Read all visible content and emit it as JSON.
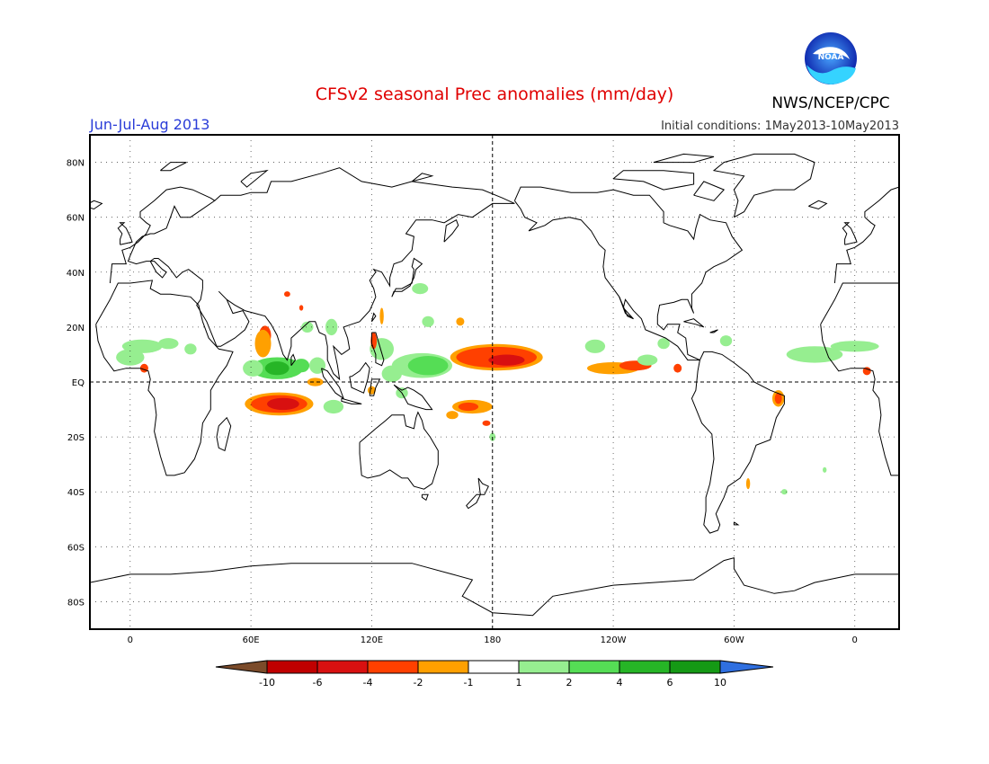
{
  "header": {
    "title": "CFSv2 seasonal Prec anomalies (mm/day)",
    "agency": "NWS/NCEP/CPC",
    "logo_text": "NOAA",
    "season": "Jun-Jul-Aug 2013",
    "initial_conditions": "Initial conditions: 1May2013-10May2013"
  },
  "colors": {
    "title": "#e00000",
    "season": "#2a3cd8",
    "frame": "#000000",
    "grid": "#000000",
    "coast": "#000000"
  },
  "map": {
    "lat_ticks": [
      {
        "lat": 80,
        "label": "80N"
      },
      {
        "lat": 60,
        "label": "60N"
      },
      {
        "lat": 40,
        "label": "40N"
      },
      {
        "lat": 20,
        "label": "20N"
      },
      {
        "lat": 0,
        "label": "EQ"
      },
      {
        "lat": -20,
        "label": "20S"
      },
      {
        "lat": -40,
        "label": "40S"
      },
      {
        "lat": -60,
        "label": "60S"
      },
      {
        "lat": -80,
        "label": "80S"
      }
    ],
    "lon_ticks": [
      {
        "lon": 0,
        "label": "0"
      },
      {
        "lon": 60,
        "label": "60E"
      },
      {
        "lon": 120,
        "label": "120E"
      },
      {
        "lon": 180,
        "label": "180"
      },
      {
        "lon": 240,
        "label": "120W"
      },
      {
        "lon": 300,
        "label": "60W"
      },
      {
        "lon": 360,
        "label": "0"
      }
    ],
    "lon_range_east": [
      -20,
      382
    ],
    "lat_range": [
      -90,
      90
    ]
  },
  "colorbar": {
    "labels": [
      "-10",
      "-6",
      "-4",
      "-2",
      "-1",
      "1",
      "2",
      "4",
      "6",
      "10"
    ],
    "colors": [
      "#7b4b2a",
      "#c00000",
      "#d81010",
      "#ff4000",
      "#ffa000",
      "#ffffff",
      "#96ee90",
      "#55dd55",
      "#26b526",
      "#159915",
      "#2f6fe0"
    ]
  },
  "anomaly_colors": {
    "dry1": "#ffa000",
    "dry2": "#ff4000",
    "dry3": "#d81010",
    "wet1": "#96ee90",
    "wet2": "#55dd55",
    "wet3": "#26b526"
  }
}
